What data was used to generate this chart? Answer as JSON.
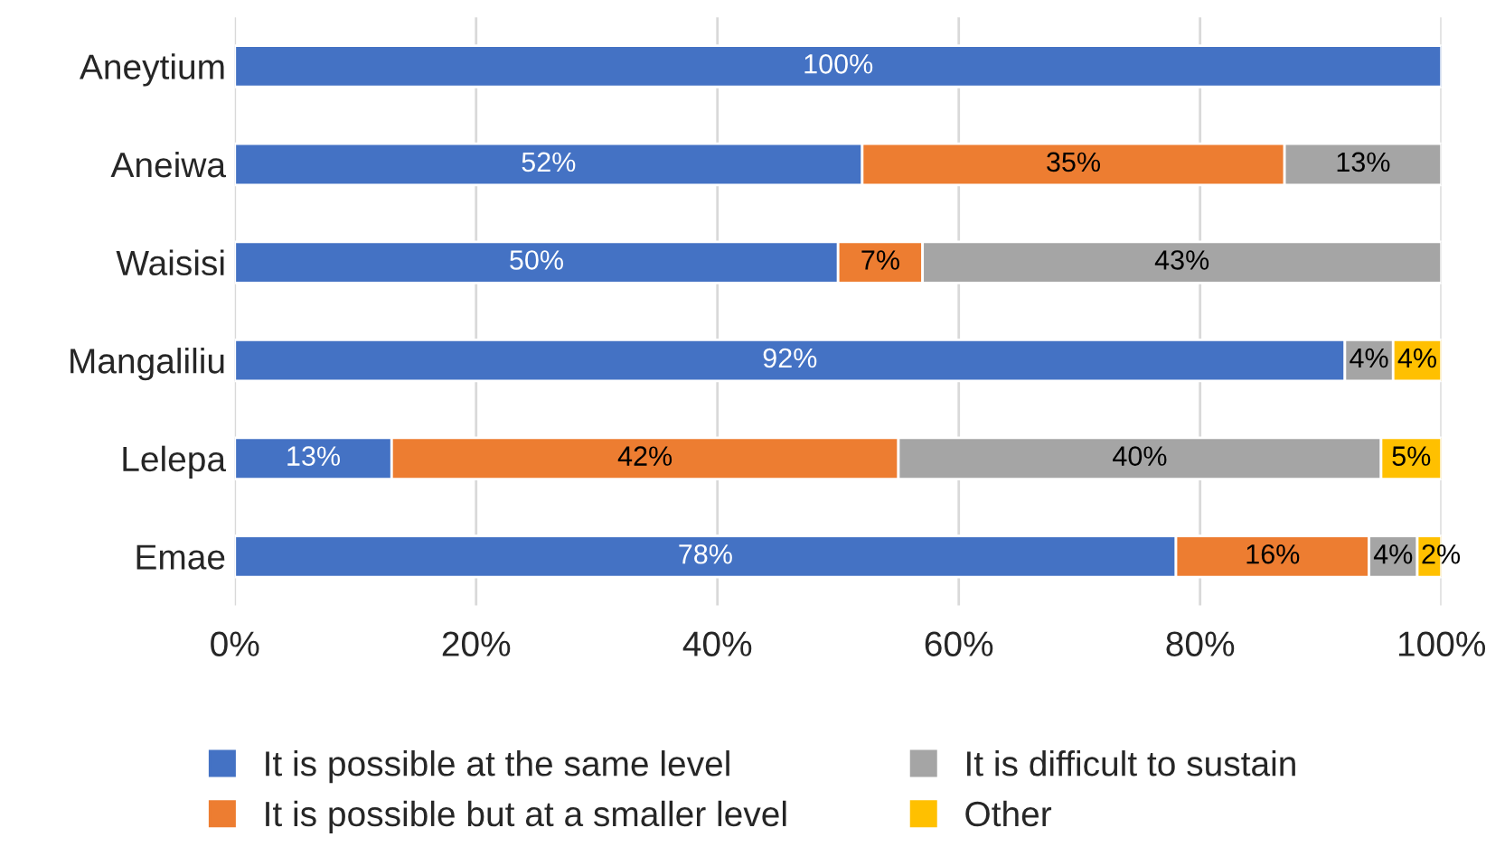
{
  "chart_data": {
    "type": "bar",
    "orientation": "horizontal",
    "stacked": true,
    "categories": [
      "Aneytium",
      "Aneiwa",
      "Waisisi",
      "Mangaliliu",
      "Lelepa",
      "Emae"
    ],
    "series": [
      {
        "name": "It is possible at the same level",
        "color": "#4472c4",
        "values": [
          100,
          52,
          50,
          92,
          13,
          78
        ],
        "value_labels": [
          "100%",
          "52%",
          "50%",
          "92%",
          "13%",
          "78%"
        ]
      },
      {
        "name": "It is possible but at a smaller level",
        "color": "#ed7d31",
        "values": [
          null,
          35,
          7,
          null,
          42,
          16
        ],
        "value_labels": [
          null,
          "35%",
          "7%",
          null,
          "42%",
          "16%"
        ]
      },
      {
        "name": "It is difficult to sustain",
        "color": "#a5a5a5",
        "values": [
          null,
          13,
          43,
          4,
          40,
          4
        ],
        "value_labels": [
          null,
          "13%",
          "43%",
          "4%",
          "40%",
          "4%"
        ]
      },
      {
        "name": "Other",
        "color": "#ffc000",
        "values": [
          null,
          null,
          null,
          4,
          5,
          2
        ],
        "value_labels": [
          null,
          null,
          null,
          "4%",
          "5%",
          "2%"
        ]
      }
    ],
    "xlim": [
      0,
      100
    ],
    "xticks": [
      {
        "value": 0,
        "label": "0%"
      },
      {
        "value": 20,
        "label": "20%"
      },
      {
        "value": 40,
        "label": "40%"
      },
      {
        "value": 60,
        "label": "60%"
      },
      {
        "value": 80,
        "label": "80%"
      },
      {
        "value": 100,
        "label": "100%"
      }
    ],
    "grid": "x",
    "legend": "bottom"
  }
}
